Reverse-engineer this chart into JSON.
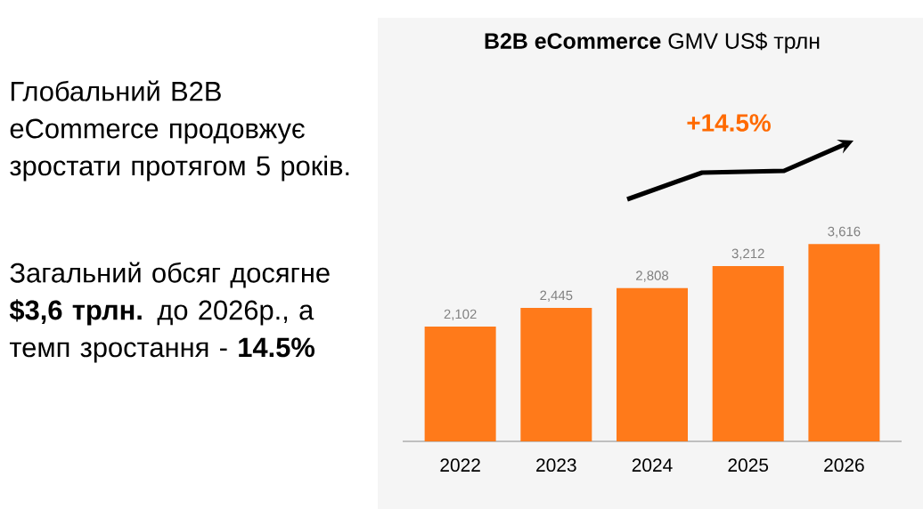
{
  "chart_data": {
    "type": "bar",
    "title": "**B2B eCommerce** GMV US$ трлн",
    "categories": [
      "2022",
      "2023",
      "2024",
      "2025",
      "2026"
    ],
    "values": [
      2102,
      2445,
      2808,
      3212,
      3616
    ],
    "value_labels": [
      "2,102",
      "2,445",
      "2,808",
      "3,212",
      "3,616"
    ],
    "color": "#ff7a1a",
    "annotations": [
      "Глобальний B2B eCommerce продовжує зростати протягом 5 років.",
      "Загальний обсяг досягне **$3,6 трлн.** до 2026р., а темп зростання - **14.5%**",
      "+14.5%"
    ]
  }
}
